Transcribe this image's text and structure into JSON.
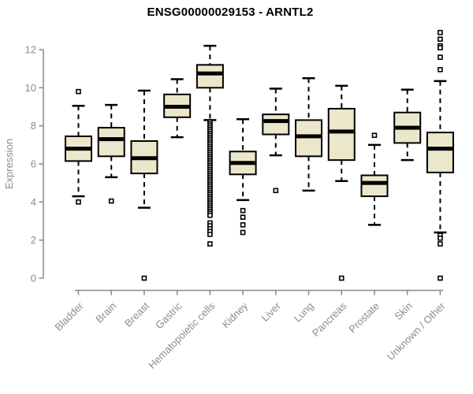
{
  "title": "ENSG00000029153 - ARNTL2",
  "colors": {
    "background": "#ffffff",
    "box_fill": "#ece7ca",
    "box_stroke": "#000000",
    "median": "#000000",
    "whisker": "#000000",
    "axis_line": "#878787",
    "axis_text": "#8c8c8c",
    "title_text": "#000000"
  },
  "chart_data": {
    "type": "box",
    "title": "ENSG00000029153 - ARNTL2",
    "xlabel": "",
    "ylabel": "Expression",
    "ylim": [
      0,
      12
    ],
    "yticks": [
      0,
      2,
      4,
      6,
      8,
      10,
      12
    ],
    "grid": false,
    "legend": null,
    "categories": [
      "Bladder",
      "Brain",
      "Breast",
      "Gastric",
      "Hematopoietic cells",
      "Kidney",
      "Liver",
      "Lung",
      "Pancreas",
      "Prostate",
      "Skin",
      "Unknown / Other"
    ],
    "series": [
      {
        "name": "Bladder",
        "low": 4.3,
        "q1": 6.15,
        "median": 6.8,
        "q3": 7.45,
        "high": 9.05,
        "outliers": [
          9.8,
          4.0
        ]
      },
      {
        "name": "Brain",
        "low": 5.3,
        "q1": 6.4,
        "median": 7.3,
        "q3": 7.9,
        "high": 9.1,
        "outliers": [
          4.05
        ]
      },
      {
        "name": "Breast",
        "low": 3.7,
        "q1": 5.5,
        "median": 6.3,
        "q3": 7.2,
        "high": 9.85,
        "outliers": [
          0
        ]
      },
      {
        "name": "Gastric",
        "low": 7.4,
        "q1": 8.45,
        "median": 9.0,
        "q3": 9.65,
        "high": 10.45,
        "outliers": []
      },
      {
        "name": "Hematopoietic cells",
        "low": 8.3,
        "q1": 10.0,
        "median": 10.75,
        "q3": 11.2,
        "high": 12.2,
        "outliers": [
          8.2,
          8.1,
          8.0,
          7.9,
          7.8,
          7.7,
          7.6,
          7.5,
          7.4,
          7.3,
          7.2,
          7.1,
          7.0,
          6.9,
          6.8,
          6.7,
          6.6,
          6.5,
          6.4,
          6.3,
          6.2,
          6.1,
          6.0,
          5.9,
          5.8,
          5.7,
          5.6,
          5.5,
          5.4,
          5.3,
          5.2,
          5.1,
          5.0,
          4.9,
          4.8,
          4.7,
          4.6,
          4.5,
          4.4,
          4.3,
          4.2,
          4.1,
          4.0,
          3.9,
          3.8,
          3.7,
          3.6,
          3.5,
          3.4,
          3.3,
          2.9,
          2.75,
          2.6,
          2.45,
          2.3,
          1.8
        ]
      },
      {
        "name": "Kidney",
        "low": 4.1,
        "q1": 5.45,
        "median": 6.05,
        "q3": 6.65,
        "high": 8.35,
        "outliers": [
          3.55,
          3.2,
          2.8,
          2.4
        ]
      },
      {
        "name": "Liver",
        "low": 6.45,
        "q1": 7.55,
        "median": 8.25,
        "q3": 8.6,
        "high": 9.95,
        "outliers": [
          4.6
        ]
      },
      {
        "name": "Lung",
        "low": 4.6,
        "q1": 6.4,
        "median": 7.45,
        "q3": 8.3,
        "high": 10.5,
        "outliers": []
      },
      {
        "name": "Pancreas",
        "low": 5.1,
        "q1": 6.2,
        "median": 7.7,
        "q3": 8.9,
        "high": 10.1,
        "outliers": [
          0
        ]
      },
      {
        "name": "Prostate",
        "low": 2.8,
        "q1": 4.3,
        "median": 5.0,
        "q3": 5.4,
        "high": 7.0,
        "outliers": [
          7.5
        ]
      },
      {
        "name": "Skin",
        "low": 6.2,
        "q1": 7.1,
        "median": 7.9,
        "q3": 8.7,
        "high": 9.9,
        "outliers": []
      },
      {
        "name": "Unknown / Other",
        "low": 2.4,
        "q1": 5.55,
        "median": 6.8,
        "q3": 7.65,
        "high": 10.35,
        "outliers": [
          12.9,
          12.55,
          12.2,
          12.1,
          11.6,
          10.95,
          2.25,
          2.1,
          1.8,
          0
        ]
      }
    ]
  }
}
